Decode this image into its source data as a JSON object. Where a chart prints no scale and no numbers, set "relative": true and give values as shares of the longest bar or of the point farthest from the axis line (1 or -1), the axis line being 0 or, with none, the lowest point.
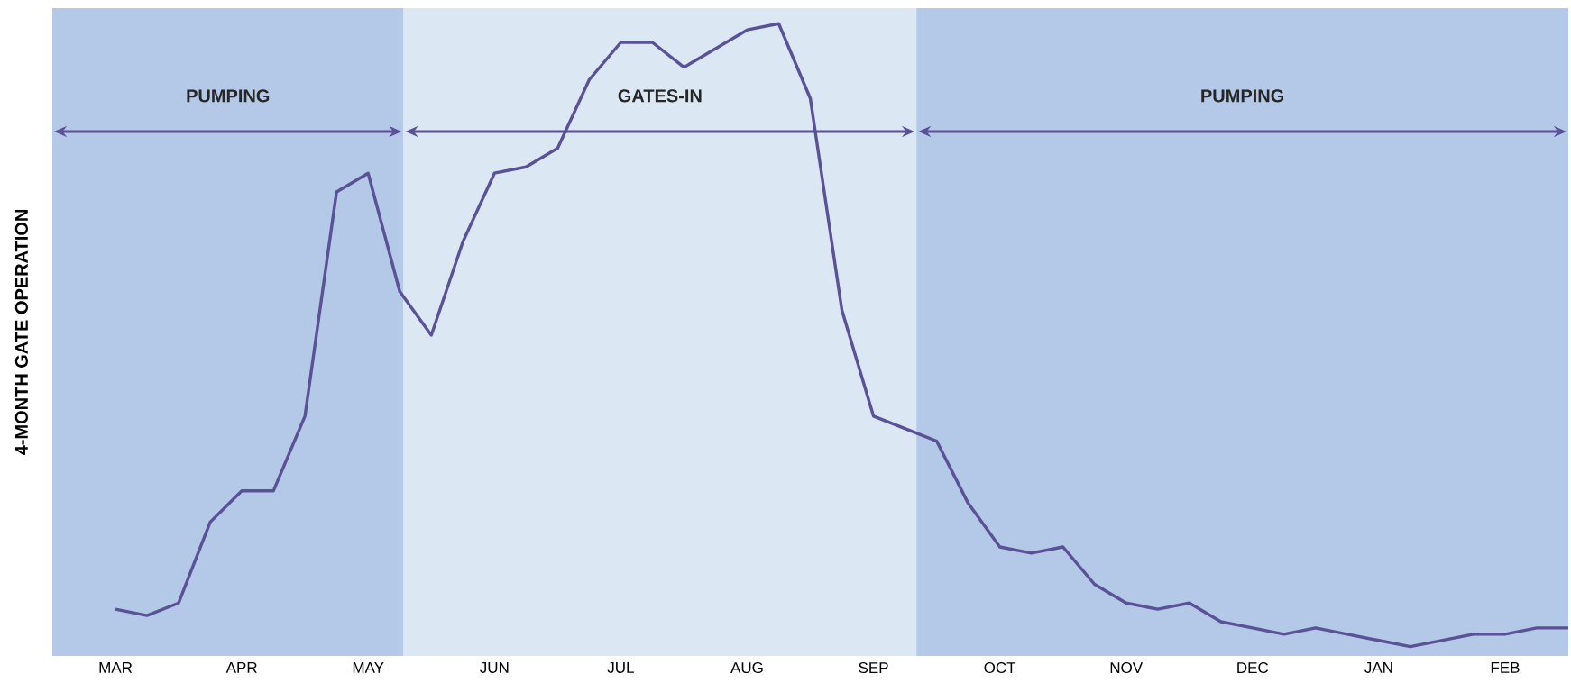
{
  "chart_data": {
    "type": "line",
    "relative": true,
    "ylabel": "4-MONTH GATE OPERATION",
    "categories": [
      null,
      null,
      "MAR",
      null,
      null,
      null,
      "APR",
      null,
      null,
      null,
      "MAY",
      null,
      null,
      null,
      "JUN",
      null,
      null,
      null,
      "JUL",
      null,
      null,
      null,
      "AUG",
      null,
      null,
      null,
      "SEP",
      null,
      null,
      null,
      "OCT",
      null,
      null,
      null,
      "NOV",
      null,
      null,
      null,
      "DEC",
      null,
      null,
      null,
      "JAN",
      null,
      null,
      null,
      "FEB",
      null,
      null
    ],
    "series": [
      {
        "color": "#5b5196",
        "values": [
          null,
          null,
          0.06,
          0.05,
          0.07,
          0.2,
          0.25,
          0.25,
          0.37,
          0.73,
          0.76,
          0.57,
          0.5,
          0.65,
          0.76,
          0.77,
          0.8,
          0.91,
          0.97,
          0.97,
          0.93,
          0.96,
          0.99,
          1.0,
          0.88,
          0.54,
          0.37,
          0.35,
          0.33,
          0.23,
          0.16,
          0.15,
          0.16,
          0.1,
          0.07,
          0.06,
          0.07,
          0.04,
          0.03,
          0.02,
          0.03,
          0.02,
          0.01,
          0.0,
          0.01,
          0.02,
          0.02,
          0.03,
          0.03
        ]
      }
    ],
    "annotations": [
      "PUMPING",
      "GATES-IN",
      "PUMPING"
    ]
  }
}
